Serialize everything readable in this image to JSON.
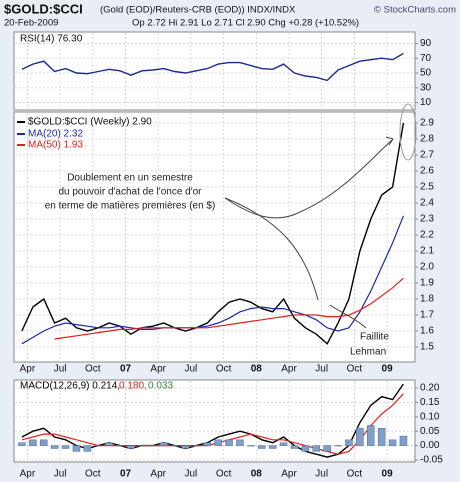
{
  "header": {
    "title": "$GOLD:$CCI",
    "subtitle": "(Gold (EOD)/Reuters-CRB (EOD))  INDX/INDX",
    "source": "© StockCharts.com",
    "date": "20-Feb-2009",
    "quote": "Op 2.72 Hi 2.91 Lo 2.71 Cl 2.90 Chg +0.28 (+10.52%)"
  },
  "chart_data": [
    {
      "type": "line",
      "series": [
        {
          "name": "RSI(14) 76.30",
          "color": "#1a2a8c",
          "values": [
            55,
            62,
            66,
            52,
            56,
            50,
            49,
            52,
            55,
            53,
            47,
            53,
            54,
            56,
            52,
            50,
            53,
            56,
            62,
            64,
            64,
            60,
            56,
            55,
            62,
            50,
            46,
            44,
            40,
            54,
            60,
            66,
            68,
            70,
            68,
            76.3
          ]
        }
      ],
      "ylim": [
        0,
        105.4
      ],
      "yticks": [
        10,
        30,
        50,
        70,
        90
      ],
      "grid": true
    },
    {
      "type": "line",
      "categories": [
        null,
        "Apr",
        null,
        null,
        "Jul",
        null,
        null,
        "Oct",
        null,
        null,
        "07",
        null,
        null,
        "Apr",
        null,
        null,
        "Jul",
        null,
        null,
        "Oct",
        null,
        null,
        "08",
        null,
        null,
        "Apr",
        null,
        null,
        "Jul",
        null,
        null,
        "Oct",
        null,
        null,
        "09",
        null
      ],
      "series": [
        {
          "name": "$GOLD:$CCI (Weekly) 2.90",
          "color": "#000000",
          "values": [
            1.6,
            1.75,
            1.8,
            1.65,
            1.68,
            1.62,
            1.6,
            1.62,
            1.65,
            1.63,
            1.58,
            1.62,
            1.63,
            1.65,
            1.62,
            1.6,
            1.62,
            1.65,
            1.72,
            1.78,
            1.8,
            1.78,
            1.74,
            1.72,
            1.8,
            1.68,
            1.62,
            1.58,
            1.52,
            1.65,
            1.8,
            2.1,
            2.3,
            2.45,
            2.5,
            2.9
          ]
        },
        {
          "name": "MA(20) 2.32",
          "color": "#1a2aa8",
          "values": [
            1.52,
            1.56,
            1.6,
            1.63,
            1.65,
            1.64,
            1.63,
            1.62,
            1.62,
            1.63,
            1.62,
            1.61,
            1.61,
            1.62,
            1.62,
            1.62,
            1.62,
            1.63,
            1.65,
            1.68,
            1.72,
            1.74,
            1.75,
            1.74,
            1.74,
            1.72,
            1.7,
            1.67,
            1.62,
            1.6,
            1.62,
            1.72,
            1.85,
            2.0,
            2.15,
            2.32
          ]
        },
        {
          "name": "MA(50) 1.93",
          "color": "#e0201a",
          "values": [
            null,
            null,
            null,
            1.55,
            1.56,
            1.57,
            1.58,
            1.59,
            1.6,
            1.61,
            1.61,
            1.62,
            1.62,
            1.62,
            1.62,
            1.62,
            1.62,
            1.62,
            1.63,
            1.64,
            1.65,
            1.66,
            1.67,
            1.68,
            1.69,
            1.7,
            1.7,
            1.7,
            1.69,
            1.69,
            1.7,
            1.73,
            1.77,
            1.82,
            1.87,
            1.93
          ]
        }
      ],
      "ylim": [
        1.406,
        2.969
      ],
      "yticks": [
        1.5,
        1.6,
        1.7,
        1.8,
        1.9,
        {
          "value": 2,
          "label": "2.0"
        },
        2.1,
        2.2,
        2.3,
        2.4,
        2.5,
        2.6,
        2.7,
        2.8,
        2.9
      ],
      "grid": true,
      "annotations": [
        "Doublement en un semestre",
        "du pouvoir d'achat de l'once d'or",
        "en terme de matières premières (en $)",
        "Faillite",
        "Lehman"
      ]
    },
    {
      "type": "line",
      "categories": [
        null,
        "Apr",
        null,
        null,
        "Jul",
        null,
        null,
        "Oct",
        null,
        null,
        "07",
        null,
        null,
        "Apr",
        null,
        null,
        "Jul",
        null,
        null,
        "Oct",
        null,
        null,
        "08",
        null,
        null,
        "Apr",
        null,
        null,
        "Jul",
        null,
        null,
        "Oct",
        null,
        null,
        "09",
        null
      ],
      "series": [
        {
          "name": "MACD(12,26,9) 0.214,",
          "color": "#000000",
          "values": [
            0.03,
            0.05,
            0.06,
            0.03,
            0.02,
            0,
            -0.01,
            0,
            0.01,
            0,
            -0.01,
            0,
            0,
            0.01,
            0,
            -0.01,
            0,
            0.01,
            0.03,
            0.04,
            0.05,
            0.04,
            0.02,
            0.01,
            0.03,
            0,
            -0.02,
            -0.03,
            -0.04,
            -0.03,
            0,
            0.08,
            0.14,
            0.17,
            0.16,
            0.214
          ]
        },
        {
          "name": "0.180,",
          "color": "#e0201a",
          "values": [
            0.02,
            0.03,
            0.04,
            0.04,
            0.03,
            0.02,
            0.01,
            0,
            0,
            0,
            0,
            0,
            0,
            0,
            0,
            0,
            0,
            0,
            0.01,
            0.02,
            0.03,
            0.04,
            0.03,
            0.02,
            0.02,
            0.01,
            0,
            -0.01,
            -0.02,
            -0.03,
            -0.02,
            0.02,
            0.07,
            0.11,
            0.14,
            0.18
          ]
        },
        {
          "name": "0.033",
          "color": "#2a8a3a",
          "type": "bar",
          "values": [
            0.01,
            0.02,
            0.02,
            -0.01,
            -0.01,
            -0.02,
            -0.02,
            0,
            0.01,
            0,
            -0.01,
            0,
            0,
            0.01,
            0,
            -0.01,
            0,
            0.01,
            0.02,
            0.02,
            0.02,
            0,
            -0.01,
            -0.01,
            0.01,
            -0.01,
            -0.02,
            -0.02,
            -0.02,
            0,
            0.02,
            0.06,
            0.07,
            0.06,
            0.02,
            0.033
          ]
        }
      ],
      "ylim": [
        -0.057,
        0.228
      ],
      "yticks": [
        {
          "value": 0.2,
          "label": "0.20"
        },
        0.15,
        {
          "value": 0.1,
          "label": "0.10"
        },
        0.05,
        {
          "value": 0,
          "label": "0.00"
        },
        -0.05
      ],
      "grid": true
    }
  ]
}
